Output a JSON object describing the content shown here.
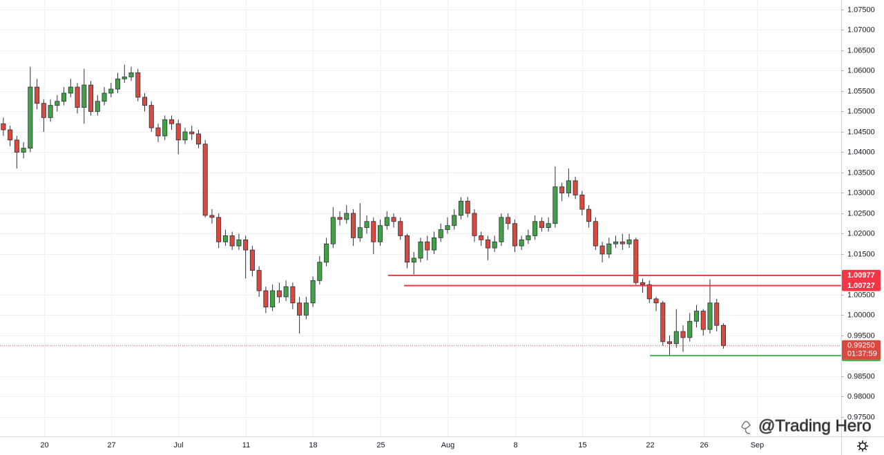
{
  "chart_data": {
    "type": "candlestick",
    "watermark": "@Trading Hero",
    "up_color": "#43a047",
    "down_color": "#d84a3f",
    "ylim": [
      0.97025,
      1.07737
    ],
    "yticks": [
      {
        "value": 1.075,
        "label": "1.07500"
      },
      {
        "value": 1.07,
        "label": "1.07000"
      },
      {
        "value": 1.065,
        "label": "1.06500"
      },
      {
        "value": 1.06,
        "label": "1.06000"
      },
      {
        "value": 1.055,
        "label": "1.05500"
      },
      {
        "value": 1.05,
        "label": "1.05000"
      },
      {
        "value": 1.045,
        "label": "1.04500"
      },
      {
        "value": 1.04,
        "label": "1.04000"
      },
      {
        "value": 1.035,
        "label": "1.03500"
      },
      {
        "value": 1.03,
        "label": "1.03000"
      },
      {
        "value": 1.025,
        "label": "1.02500"
      },
      {
        "value": 1.02,
        "label": "1.02000"
      },
      {
        "value": 1.015,
        "label": "1.01500"
      },
      {
        "value": 1.005,
        "label": "1.00500"
      },
      {
        "value": 1.0,
        "label": "1.00000"
      },
      {
        "value": 0.995,
        "label": "0.99500"
      },
      {
        "value": 0.985,
        "label": "0.98500"
      },
      {
        "value": 0.98,
        "label": "0.98000"
      },
      {
        "value": 0.975,
        "label": "0.97500"
      }
    ],
    "grid": true,
    "categories": [
      null,
      null,
      null,
      null,
      null,
      "20",
      null,
      null,
      null,
      null,
      null,
      null,
      null,
      null,
      null,
      "27",
      null,
      null,
      null,
      null,
      null,
      null,
      null,
      null,
      null,
      "Jul",
      null,
      null,
      null,
      null,
      null,
      null,
      null,
      null,
      null,
      "11",
      null,
      null,
      null,
      null,
      null,
      null,
      null,
      null,
      null,
      "18",
      null,
      null,
      null,
      null,
      null,
      null,
      null,
      null,
      null,
      "25",
      null,
      null,
      null,
      null,
      null,
      null,
      null,
      null,
      null,
      "Aug",
      null,
      null,
      null,
      null,
      null,
      null,
      null,
      null,
      null,
      "8",
      null,
      null,
      null,
      null,
      null,
      null,
      null,
      null,
      null,
      "15",
      null,
      null,
      null,
      null,
      null,
      null,
      null,
      null,
      null,
      "22",
      null,
      null,
      null,
      null,
      null,
      null,
      null,
      "26",
      null,
      null,
      null,
      null,
      null,
      null,
      null,
      "Sep",
      null,
      null,
      null,
      null,
      null,
      null,
      null,
      null,
      null,
      null,
      null,
      null,
      null
    ],
    "open": [
      1.047,
      1.0455,
      1.043,
      1.04,
      1.041,
      1.056,
      1.052,
      1.0485,
      1.0515,
      1.0525,
      1.0545,
      1.056,
      1.051,
      1.0565,
      1.05,
      1.0525,
      1.0545,
      1.0555,
      1.058,
      1.0585,
      1.0595,
      1.0535,
      1.0515,
      1.046,
      1.044,
      1.048,
      1.047,
      1.043,
      1.045,
      1.0445,
      1.042,
      1.0245,
      1.024,
      1.018,
      1.0195,
      1.017,
      1.0185,
      1.016,
      1.011,
      1.006,
      1.002,
      1.006,
      1.0045,
      1.007,
      1.003,
      1.0,
      1.003,
      1.0085,
      1.013,
      1.0175,
      1.024,
      1.0235,
      1.025,
      1.019,
      1.0215,
      1.023,
      1.018,
      1.022,
      1.024,
      1.023,
      1.0195,
      1.013,
      1.014,
      1.018,
      1.016,
      1.019,
      1.021,
      1.022,
      1.0245,
      1.028,
      1.025,
      1.0195,
      1.0185,
      1.0165,
      1.018,
      1.024,
      1.0225,
      1.017,
      1.0185,
      1.0195,
      1.023,
      1.0215,
      1.0225,
      1.0315,
      1.03,
      1.033,
      1.0295,
      1.026,
      1.023,
      1.017,
      1.015,
      1.0175,
      1.018,
      1.0175,
      1.0185,
      1.008,
      1.0075,
      1.004,
      1.003,
      0.9935,
      0.993,
      0.996,
      0.9945,
      0.9985,
      1.001,
      0.9965,
      1.003,
      0.9975,
      null,
      null,
      null,
      null,
      null,
      null,
      null,
      null,
      null,
      null,
      null,
      null,
      null,
      null,
      null,
      null,
      null
    ],
    "high": [
      1.0485,
      1.0465,
      1.044,
      1.0425,
      1.061,
      1.058,
      1.053,
      1.053,
      1.054,
      1.056,
      1.058,
      1.057,
      1.0605,
      1.0575,
      1.054,
      1.056,
      1.057,
      1.0595,
      1.0615,
      1.061,
      1.0605,
      1.0545,
      1.0525,
      1.047,
      1.049,
      1.049,
      1.048,
      1.046,
      1.0465,
      1.0455,
      1.043,
      1.026,
      1.025,
      1.021,
      1.0205,
      1.02,
      1.0195,
      1.017,
      1.012,
      1.007,
      1.0075,
      1.008,
      1.0085,
      1.008,
      1.0045,
      1.0045,
      1.0095,
      1.0145,
      1.019,
      1.0265,
      1.0255,
      1.027,
      1.026,
      1.0275,
      1.0245,
      1.024,
      1.0235,
      1.0255,
      1.025,
      1.024,
      1.02,
      1.0155,
      1.019,
      1.0195,
      1.0205,
      1.0225,
      1.024,
      1.026,
      1.029,
      1.029,
      1.026,
      1.0205,
      1.0195,
      1.0195,
      1.025,
      1.025,
      1.0235,
      1.0195,
      1.021,
      1.0245,
      1.024,
      1.024,
      1.0365,
      1.0325,
      1.036,
      1.034,
      1.0305,
      1.027,
      1.024,
      1.018,
      1.019,
      1.0195,
      1.02,
      1.02,
      1.019,
      1.009,
      1.0085,
      1.0045,
      1.0035,
      0.995,
      1.0015,
      0.9975,
      1.0005,
      1.0025,
      1.0015,
      1.0088,
      1.004,
      0.998,
      null,
      null,
      null,
      null,
      null,
      null,
      null,
      null,
      null,
      null,
      null,
      null,
      null,
      null,
      null,
      null,
      null
    ],
    "low": [
      1.044,
      1.0415,
      1.036,
      1.0385,
      1.04,
      1.0505,
      1.045,
      1.0475,
      1.05,
      1.0515,
      1.0535,
      1.0495,
      1.047,
      1.049,
      1.049,
      1.0515,
      1.0535,
      1.0545,
      1.057,
      1.0575,
      1.0525,
      1.05,
      1.045,
      1.0425,
      1.043,
      1.0455,
      1.0395,
      1.042,
      1.043,
      1.041,
      1.024,
      1.0225,
      1.0165,
      1.017,
      1.016,
      1.016,
      1.009,
      1.0095,
      1.0045,
      1.0005,
      1.001,
      1.003,
      1.0035,
      1.0015,
      0.9955,
      0.999,
      1.002,
      1.0075,
      1.012,
      1.0165,
      1.022,
      1.0225,
      1.017,
      1.018,
      1.02,
      1.015,
      1.017,
      1.021,
      1.0215,
      1.0185,
      1.0115,
      1.01,
      1.013,
      1.0135,
      1.015,
      1.018,
      1.02,
      1.021,
      1.0235,
      1.024,
      1.018,
      1.017,
      1.0135,
      1.0155,
      1.017,
      1.021,
      1.0155,
      1.016,
      1.0175,
      1.0185,
      1.0205,
      1.0205,
      1.0215,
      1.028,
      1.029,
      1.0285,
      1.0245,
      1.0215,
      1.016,
      1.013,
      1.014,
      1.0165,
      1.016,
      1.0165,
      1.0075,
      1.0055,
      1.003,
      1.001,
      0.9925,
      0.99,
      0.992,
      0.991,
      0.9935,
      0.997,
      0.995,
      0.9955,
      0.996,
      0.9918,
      null,
      null,
      null,
      null,
      null,
      null,
      null,
      null,
      null,
      null,
      null,
      null,
      null,
      null,
      null,
      null,
      null
    ],
    "close": [
      1.0455,
      1.043,
      1.04,
      1.041,
      1.056,
      1.052,
      1.0485,
      1.0515,
      1.0525,
      1.0545,
      1.056,
      1.051,
      1.0565,
      1.05,
      1.0525,
      1.0545,
      1.0555,
      1.058,
      1.0585,
      1.0595,
      1.0535,
      1.0515,
      1.046,
      1.044,
      1.048,
      1.047,
      1.043,
      1.045,
      1.0445,
      1.042,
      1.0245,
      1.024,
      1.018,
      1.0195,
      1.017,
      1.0185,
      1.016,
      1.011,
      1.006,
      1.002,
      1.006,
      1.0045,
      1.007,
      1.003,
      1.0,
      1.003,
      1.0085,
      1.013,
      1.0175,
      1.024,
      1.0235,
      1.025,
      1.019,
      1.0215,
      1.023,
      1.018,
      1.022,
      1.024,
      1.023,
      1.0195,
      1.013,
      1.014,
      1.018,
      1.016,
      1.019,
      1.021,
      1.022,
      1.0245,
      1.028,
      1.025,
      1.0195,
      1.0185,
      1.0165,
      1.018,
      1.024,
      1.0225,
      1.017,
      1.0185,
      1.0195,
      1.023,
      1.0215,
      1.0225,
      1.0315,
      1.03,
      1.033,
      1.0295,
      1.026,
      1.023,
      1.017,
      1.015,
      1.0175,
      1.018,
      1.0175,
      1.0185,
      1.008,
      1.0075,
      1.004,
      1.003,
      0.9935,
      0.993,
      0.996,
      0.9945,
      0.9985,
      1.001,
      0.9965,
      1.003,
      0.9975,
      0.9925,
      null,
      null,
      null,
      null,
      null,
      null,
      null,
      null,
      null,
      null,
      null,
      null,
      null,
      null,
      null,
      null,
      null
    ],
    "levels": [
      {
        "value": 1.00977,
        "color": "#f23645"
      },
      {
        "value": 1.00727,
        "color": "#f23645"
      },
      {
        "value": 0.99005,
        "color": "#4caf50"
      }
    ],
    "last_price": 0.9925,
    "last_price_label": "0.99250",
    "countdown": "01:37:59"
  }
}
